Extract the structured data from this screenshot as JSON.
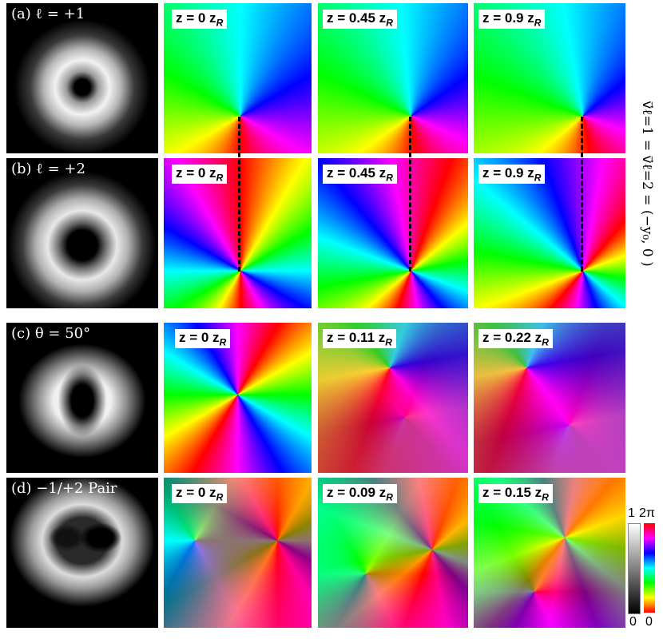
{
  "rows": [
    {
      "label": "(a) ℓ = +1",
      "z": [
        "z = 0  z",
        "z = 0.45 z",
        "z = 0.9 z"
      ]
    },
    {
      "label": "(b) ℓ = +2",
      "z": [
        "z = 0  z",
        "z = 0.45 z",
        "z = 0.9 z"
      ]
    },
    {
      "label": "(c) θ = 50°",
      "z": [
        "z = 0  z",
        "z = 0.11 z",
        "z = 0.22 z"
      ]
    },
    {
      "label": "(d) −1/+2 Pair",
      "z": [
        "z = 0  z",
        "z = 0.09 z",
        "z = 0.15 z"
      ]
    }
  ],
  "z_sub": "R",
  "side_label": "v⃗ℓ=1 = v⃗ℓ=2 = (−y₀, 0 )",
  "colorbars": {
    "gray_top": "1",
    "gray_bottom": "0",
    "phase_top": "2π",
    "phase_bottom": "0"
  },
  "colors": {
    "phase_stops": [
      "#ff0000",
      "#ffff00",
      "#00ff00",
      "#00ffff",
      "#0000ff",
      "#ff00ff",
      "#ff0000"
    ]
  }
}
